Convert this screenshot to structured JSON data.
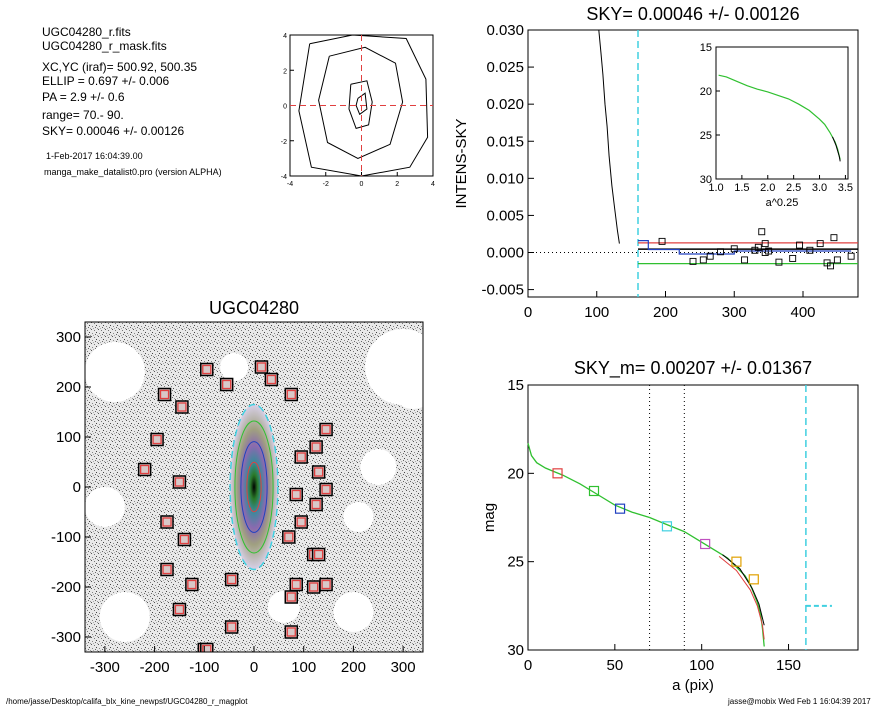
{
  "header": {
    "file_lines": [
      "UGC04280_r.fits",
      "UGC04280_r_mask.fits"
    ],
    "param_lines": [
      "XC,YC (iraf)=   500.92, 500.35",
      "ELLIP = 0.697 +/- 0.006",
      "PA    =   2.9 +/-   0.6",
      "range=   70.-   90.",
      "SKY= 0.00046 +/- 0.00126"
    ],
    "date_line": "1-Feb-2017 16:04:39.00",
    "version_line": "manga_make_datalist0.pro (version ALPHA)"
  },
  "footer": {
    "path": "/home/jasse/Desktop/califa_blx_kine_newpsf/UGC04280_r_magplot",
    "user_stamp": "jasse@mobix  Wed Feb  1 16:04:39 2017"
  },
  "colors": {
    "red": "#e04040",
    "cyan": "#40d0e0",
    "green": "#30c030",
    "blue": "#2040c0",
    "black": "#000000"
  },
  "chart_data": [
    {
      "id": "contour-center",
      "type": "line",
      "title": "",
      "xlim": [
        -4,
        4
      ],
      "ylim": [
        -4,
        4
      ],
      "xticks": [
        -4,
        -2,
        0,
        2,
        4
      ],
      "yticks": [
        -4,
        -2,
        0,
        2,
        4
      ],
      "contours": [
        [
          [
            -0.2,
            0.4
          ],
          [
            0.2,
            0.7
          ],
          [
            0.3,
            -0.2
          ],
          [
            -0.1,
            -0.5
          ],
          [
            -0.3,
            0.0
          ],
          [
            -0.2,
            0.4
          ]
        ],
        [
          [
            -0.6,
            1.2
          ],
          [
            0.3,
            1.4
          ],
          [
            0.6,
            0.2
          ],
          [
            0.4,
            -1.1
          ],
          [
            -0.3,
            -1.3
          ],
          [
            -0.7,
            -0.2
          ],
          [
            -0.6,
            1.2
          ]
        ],
        [
          [
            -1.8,
            2.8
          ],
          [
            0.2,
            3.3
          ],
          [
            1.9,
            2.4
          ],
          [
            2.3,
            0.2
          ],
          [
            1.6,
            -2.2
          ],
          [
            -0.2,
            -3.0
          ],
          [
            -1.9,
            -2.1
          ],
          [
            -2.4,
            0.3
          ],
          [
            -1.8,
            2.8
          ]
        ],
        [
          [
            -2.9,
            3.5
          ],
          [
            -0.5,
            4.0
          ],
          [
            2.5,
            3.8
          ],
          [
            3.6,
            1.5
          ],
          [
            3.7,
            -1.8
          ],
          [
            2.7,
            -3.5
          ],
          [
            0.0,
            -4.0
          ],
          [
            -2.8,
            -3.5
          ],
          [
            -3.5,
            -0.3
          ],
          [
            -2.9,
            3.5
          ]
        ]
      ],
      "crosshair": [
        0,
        0
      ]
    },
    {
      "id": "sky-profile",
      "type": "line",
      "title": "SKY= 0.00046 +/- 0.00126",
      "ylabel": "INTENS-SKY",
      "xlim": [
        0,
        480
      ],
      "ylim": [
        -0.006,
        0.03
      ],
      "xticks": [
        0,
        100,
        200,
        300,
        400
      ],
      "yticks": [
        -0.005,
        0.0,
        0.005,
        0.01,
        0.015,
        0.02,
        0.025,
        0.03
      ],
      "ytick_labels": [
        "-0.005",
        "0.000",
        "0.005",
        "0.010",
        "0.015",
        "0.020",
        "0.025",
        "0.030"
      ],
      "vline_x": 160,
      "profile": {
        "x": [
          103,
          106,
          109,
          112,
          115,
          118,
          122,
          126,
          130,
          133
        ],
        "y": [
          0.03,
          0.027,
          0.024,
          0.02,
          0.017,
          0.013,
          0.009,
          0.006,
          0.003,
          0.0012
        ]
      },
      "sky_levels": {
        "black": 0.00046,
        "red": 0.0013,
        "green": -0.0015
      },
      "squares": {
        "x": [
          195,
          240,
          255,
          265,
          280,
          300,
          315,
          330,
          335,
          340,
          345,
          345,
          350,
          365,
          385,
          395,
          410,
          425,
          435,
          440,
          445,
          450,
          470
        ],
        "y": [
          0.0015,
          -0.0012,
          -0.001,
          -0.0005,
          0.0001,
          0.0005,
          -0.001,
          0.0003,
          0.0007,
          0.0028,
          0.0,
          0.0012,
          0.0002,
          -0.0013,
          -0.0008,
          0.001,
          0.0003,
          0.0012,
          -0.0014,
          -0.0018,
          0.002,
          -0.001,
          -0.0005
        ]
      },
      "inset": {
        "xlabel": "a^0.25",
        "xlim": [
          1.0,
          3.55
        ],
        "ylim": [
          15,
          30
        ],
        "xticks": [
          1.0,
          1.5,
          2.0,
          2.5,
          3.0,
          3.5
        ],
        "xtick_labels": [
          "1.0",
          "1.5",
          "2.0",
          "2.5",
          "3.0",
          "3.5"
        ],
        "yticks": [
          15,
          20,
          25,
          30
        ],
        "curve": {
          "x": [
            1.05,
            1.2,
            1.4,
            1.6,
            1.8,
            2.0,
            2.2,
            2.4,
            2.6,
            2.8,
            3.0,
            3.1,
            3.2,
            3.3,
            3.35,
            3.4
          ],
          "y": [
            18.2,
            18.4,
            18.9,
            19.4,
            19.8,
            20.1,
            20.5,
            20.9,
            21.5,
            22.2,
            23.2,
            23.8,
            24.7,
            25.8,
            26.6,
            27.8
          ]
        }
      }
    },
    {
      "id": "image-map",
      "type": "scatter",
      "title": "UGC04280",
      "xlim": [
        -340,
        340
      ],
      "ylim": [
        -330,
        330
      ],
      "xticks": [
        -300,
        -200,
        -100,
        0,
        100,
        200,
        300
      ],
      "yticks": [
        -300,
        -200,
        -100,
        0,
        100,
        200,
        300
      ],
      "ellipse": {
        "cx": 0,
        "cy": 0,
        "rx": 48,
        "ry": 165
      },
      "masked_stars": {
        "x": [
          -95,
          -55,
          -180,
          -145,
          -195,
          -220,
          -150,
          -175,
          -140,
          -175,
          -150,
          -125,
          -45,
          -45,
          -100,
          15,
          35,
          75,
          85,
          125,
          145,
          95,
          130,
          125,
          145,
          120,
          95,
          130,
          70,
          145,
          85,
          75,
          120,
          75,
          -95
        ],
        "y": [
          235,
          205,
          185,
          160,
          95,
          35,
          10,
          -70,
          -105,
          -165,
          -245,
          -195,
          -185,
          -280,
          -325,
          240,
          215,
          185,
          -15,
          80,
          115,
          60,
          30,
          -35,
          -5,
          -135,
          -70,
          -135,
          -100,
          -195,
          -195,
          -220,
          -200,
          -290,
          -325
        ]
      }
    },
    {
      "id": "mag-profile",
      "type": "line",
      "title": "SKY_m=  0.00207 +/- 0.01367",
      "xlabel": "a (pix)",
      "ylabel": "mag",
      "xlim": [
        0,
        190
      ],
      "ylim": [
        15,
        30
      ],
      "xticks": [
        0,
        50,
        100,
        150
      ],
      "yticks": [
        15,
        20,
        25,
        30
      ],
      "range_lines": [
        70,
        90
      ],
      "sky_line": 160,
      "sky_mag_segment": {
        "x": [
          160,
          175
        ],
        "y": 27.5
      },
      "curve": {
        "x": [
          0,
          2,
          5,
          10,
          15,
          20,
          30,
          40,
          50,
          60,
          70,
          80,
          90,
          100,
          110,
          115,
          120,
          125,
          128,
          130,
          132,
          134,
          135,
          136
        ],
        "y": [
          18.3,
          19.0,
          19.4,
          19.7,
          19.9,
          20.1,
          20.6,
          21.2,
          21.8,
          22.2,
          22.5,
          22.9,
          23.3,
          23.9,
          24.5,
          24.8,
          25.3,
          25.8,
          26.3,
          26.8,
          27.3,
          28.0,
          28.8,
          29.8
        ]
      },
      "markers": [
        {
          "x": 17,
          "y": 20.0,
          "color": "#e04040"
        },
        {
          "x": 38,
          "y": 21.0,
          "color": "#30c030"
        },
        {
          "x": 53,
          "y": 22.0,
          "color": "#2040c0"
        },
        {
          "x": 80,
          "y": 23.0,
          "color": "#40d0e0"
        },
        {
          "x": 102,
          "y": 24.0,
          "color": "#c050c0"
        },
        {
          "x": 120,
          "y": 25.0,
          "color": "#e0a000"
        },
        {
          "x": 130,
          "y": 26.0,
          "color": "#e0a000"
        }
      ]
    }
  ]
}
